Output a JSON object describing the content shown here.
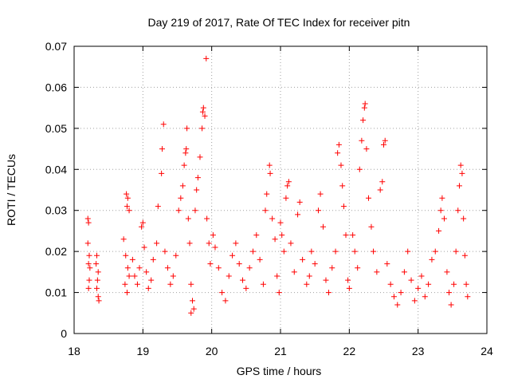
{
  "chart_data": {
    "type": "scatter",
    "title": "Day 219 of 2017, Rate Of TEC Index for receiver pitn",
    "xlabel": "GPS time / hours",
    "ylabel": "ROTI / TECUs",
    "xlim": [
      18,
      24
    ],
    "ylim": [
      0,
      0.07
    ],
    "x_ticks": [
      "18",
      "19",
      "20",
      "21",
      "22",
      "23",
      "24"
    ],
    "y_ticks": [
      "0",
      "0.01",
      "0.02",
      "0.03",
      "0.04",
      "0.05",
      "0.06",
      "0.07"
    ],
    "grid": true,
    "marker": "plus",
    "color": "#ff0000",
    "series": [
      {
        "points": [
          [
            18.2,
            0.028
          ],
          [
            18.21,
            0.027
          ],
          [
            18.2,
            0.022
          ],
          [
            18.22,
            0.019
          ],
          [
            18.21,
            0.017
          ],
          [
            18.23,
            0.016
          ],
          [
            18.22,
            0.013
          ],
          [
            18.21,
            0.011
          ],
          [
            18.33,
            0.019
          ],
          [
            18.32,
            0.017
          ],
          [
            18.35,
            0.015
          ],
          [
            18.34,
            0.013
          ],
          [
            18.33,
            0.011
          ],
          [
            18.35,
            0.009
          ],
          [
            18.36,
            0.008
          ],
          [
            18.72,
            0.023
          ],
          [
            18.75,
            0.019
          ],
          [
            18.78,
            0.016
          ],
          [
            18.74,
            0.012
          ],
          [
            18.77,
            0.01
          ],
          [
            18.8,
            0.014
          ],
          [
            18.76,
            0.034
          ],
          [
            18.78,
            0.033
          ],
          [
            18.77,
            0.031
          ],
          [
            18.8,
            0.03
          ],
          [
            18.85,
            0.018
          ],
          [
            18.88,
            0.014
          ],
          [
            18.92,
            0.012
          ],
          [
            18.95,
            0.016
          ],
          [
            18.98,
            0.026
          ],
          [
            19.0,
            0.027
          ],
          [
            19.02,
            0.021
          ],
          [
            19.05,
            0.015
          ],
          [
            19.08,
            0.011
          ],
          [
            19.12,
            0.013
          ],
          [
            19.15,
            0.018
          ],
          [
            19.2,
            0.022
          ],
          [
            19.22,
            0.031
          ],
          [
            19.27,
            0.039
          ],
          [
            19.28,
            0.045
          ],
          [
            19.3,
            0.051
          ],
          [
            19.32,
            0.02
          ],
          [
            19.36,
            0.016
          ],
          [
            19.4,
            0.012
          ],
          [
            19.44,
            0.014
          ],
          [
            19.48,
            0.019
          ],
          [
            19.52,
            0.03
          ],
          [
            19.55,
            0.033
          ],
          [
            19.58,
            0.036
          ],
          [
            19.6,
            0.041
          ],
          [
            19.62,
            0.044
          ],
          [
            19.64,
            0.05
          ],
          [
            19.63,
            0.045
          ],
          [
            19.66,
            0.028
          ],
          [
            19.68,
            0.022
          ],
          [
            19.7,
            0.012
          ],
          [
            19.72,
            0.008
          ],
          [
            19.74,
            0.006
          ],
          [
            19.7,
            0.005
          ],
          [
            19.76,
            0.03
          ],
          [
            19.78,
            0.035
          ],
          [
            19.8,
            0.038
          ],
          [
            19.83,
            0.043
          ],
          [
            19.86,
            0.05
          ],
          [
            19.87,
            0.054
          ],
          [
            19.88,
            0.055
          ],
          [
            19.9,
            0.053
          ],
          [
            19.92,
            0.067
          ],
          [
            19.93,
            0.028
          ],
          [
            19.96,
            0.022
          ],
          [
            19.98,
            0.017
          ],
          [
            20.02,
            0.024
          ],
          [
            20.05,
            0.021
          ],
          [
            20.1,
            0.016
          ],
          [
            20.15,
            0.01
          ],
          [
            20.2,
            0.008
          ],
          [
            20.25,
            0.014
          ],
          [
            20.3,
            0.019
          ],
          [
            20.35,
            0.022
          ],
          [
            20.4,
            0.017
          ],
          [
            20.45,
            0.013
          ],
          [
            20.5,
            0.011
          ],
          [
            20.55,
            0.016
          ],
          [
            20.6,
            0.02
          ],
          [
            20.65,
            0.024
          ],
          [
            20.7,
            0.018
          ],
          [
            20.75,
            0.012
          ],
          [
            20.78,
            0.03
          ],
          [
            20.8,
            0.034
          ],
          [
            20.84,
            0.041
          ],
          [
            20.85,
            0.039
          ],
          [
            20.88,
            0.028
          ],
          [
            20.92,
            0.023
          ],
          [
            20.95,
            0.014
          ],
          [
            20.98,
            0.01
          ],
          [
            21.0,
            0.027
          ],
          [
            21.02,
            0.024
          ],
          [
            21.05,
            0.02
          ],
          [
            21.08,
            0.033
          ],
          [
            21.1,
            0.036
          ],
          [
            21.12,
            0.037
          ],
          [
            21.15,
            0.022
          ],
          [
            21.2,
            0.015
          ],
          [
            21.25,
            0.029
          ],
          [
            21.28,
            0.032
          ],
          [
            21.32,
            0.018
          ],
          [
            21.38,
            0.012
          ],
          [
            21.42,
            0.014
          ],
          [
            21.45,
            0.02
          ],
          [
            21.5,
            0.017
          ],
          [
            21.55,
            0.03
          ],
          [
            21.58,
            0.034
          ],
          [
            21.62,
            0.026
          ],
          [
            21.66,
            0.013
          ],
          [
            21.7,
            0.01
          ],
          [
            21.75,
            0.016
          ],
          [
            21.8,
            0.02
          ],
          [
            21.83,
            0.044
          ],
          [
            21.85,
            0.046
          ],
          [
            21.88,
            0.041
          ],
          [
            21.9,
            0.036
          ],
          [
            21.92,
            0.031
          ],
          [
            21.95,
            0.024
          ],
          [
            21.98,
            0.013
          ],
          [
            22.0,
            0.011
          ],
          [
            22.05,
            0.024
          ],
          [
            22.08,
            0.02
          ],
          [
            22.12,
            0.016
          ],
          [
            22.15,
            0.04
          ],
          [
            22.18,
            0.047
          ],
          [
            22.2,
            0.052
          ],
          [
            22.22,
            0.055
          ],
          [
            22.23,
            0.056
          ],
          [
            22.25,
            0.045
          ],
          [
            22.28,
            0.033
          ],
          [
            22.32,
            0.026
          ],
          [
            22.35,
            0.02
          ],
          [
            22.4,
            0.015
          ],
          [
            22.45,
            0.035
          ],
          [
            22.48,
            0.037
          ],
          [
            22.5,
            0.046
          ],
          [
            22.52,
            0.047
          ],
          [
            22.55,
            0.017
          ],
          [
            22.6,
            0.012
          ],
          [
            22.65,
            0.009
          ],
          [
            22.7,
            0.007
          ],
          [
            22.75,
            0.01
          ],
          [
            22.8,
            0.015
          ],
          [
            22.85,
            0.02
          ],
          [
            22.9,
            0.013
          ],
          [
            22.95,
            0.008
          ],
          [
            23.0,
            0.011
          ],
          [
            23.05,
            0.014
          ],
          [
            23.1,
            0.009
          ],
          [
            23.15,
            0.012
          ],
          [
            23.2,
            0.018
          ],
          [
            23.25,
            0.02
          ],
          [
            23.3,
            0.025
          ],
          [
            23.33,
            0.03
          ],
          [
            23.35,
            0.033
          ],
          [
            23.38,
            0.028
          ],
          [
            23.42,
            0.015
          ],
          [
            23.45,
            0.01
          ],
          [
            23.48,
            0.007
          ],
          [
            23.52,
            0.012
          ],
          [
            23.55,
            0.02
          ],
          [
            23.58,
            0.03
          ],
          [
            23.6,
            0.036
          ],
          [
            23.62,
            0.041
          ],
          [
            23.64,
            0.039
          ],
          [
            23.66,
            0.028
          ],
          [
            23.68,
            0.019
          ],
          [
            23.7,
            0.012
          ],
          [
            23.72,
            0.009
          ]
        ]
      }
    ]
  }
}
